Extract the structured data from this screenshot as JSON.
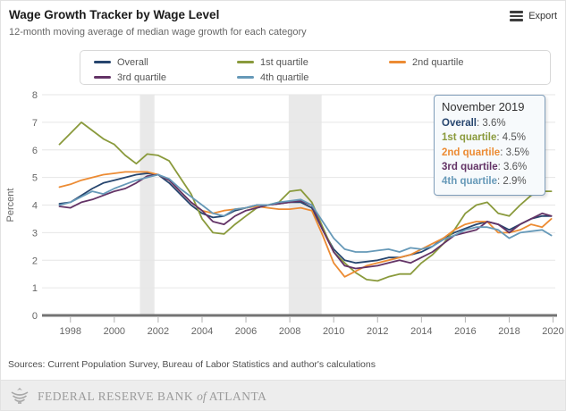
{
  "header": {
    "export_label": "Export"
  },
  "chart_data": {
    "type": "line",
    "title": "Wage Growth Tracker by Wage Level",
    "subtitle": "12-month moving average of median wage growth for each category",
    "xlabel": "",
    "ylabel": "Percent",
    "ylim": [
      0,
      8
    ],
    "yticks": [
      0,
      1,
      2,
      3,
      4,
      5,
      6,
      7,
      8
    ],
    "xlim": [
      1996.95,
      2020.1
    ],
    "xticks": [
      1998,
      2000,
      2002,
      2004,
      2006,
      2008,
      2010,
      2012,
      2014,
      2016,
      2018,
      2020
    ],
    "grid": true,
    "legend_position": "top",
    "band_color": "#e9e9e9",
    "grid_color": "#e6e6e6",
    "axis_color": "#737373",
    "recession_bands": [
      [
        2001.17,
        2001.83
      ],
      [
        2007.95,
        2009.45
      ]
    ],
    "x": [
      1997.5,
      1998,
      1998.5,
      1999,
      1999.5,
      2000,
      2000.5,
      2001,
      2001.5,
      2002,
      2002.5,
      2003,
      2003.5,
      2004,
      2004.5,
      2005,
      2005.5,
      2006,
      2006.5,
      2007,
      2007.5,
      2008,
      2008.5,
      2009,
      2009.5,
      2010,
      2010.5,
      2011,
      2011.5,
      2012,
      2012.5,
      2013,
      2013.5,
      2014,
      2014.5,
      2015,
      2015.5,
      2016,
      2016.5,
      2017,
      2017.5,
      2018,
      2018.5,
      2019,
      2019.5,
      2019.92
    ],
    "series": [
      {
        "name": "Overall",
        "color": "#26456e",
        "values": [
          4.05,
          4.1,
          4.35,
          4.6,
          4.8,
          4.9,
          5.0,
          5.1,
          5.15,
          5.1,
          4.8,
          4.4,
          4.0,
          3.7,
          3.55,
          3.6,
          3.8,
          3.9,
          4.0,
          4.0,
          4.05,
          4.1,
          4.1,
          3.9,
          3.1,
          2.4,
          2.0,
          1.9,
          1.95,
          2.0,
          2.1,
          2.1,
          2.2,
          2.3,
          2.5,
          2.8,
          3.0,
          3.15,
          3.3,
          3.4,
          3.3,
          3.1,
          3.3,
          3.5,
          3.6,
          3.6
        ]
      },
      {
        "name": "1st quartile",
        "color": "#8a9a3c",
        "values": [
          6.2,
          6.6,
          7.0,
          6.7,
          6.4,
          6.2,
          5.8,
          5.5,
          5.85,
          5.8,
          5.6,
          5.0,
          4.4,
          3.5,
          3.0,
          2.95,
          3.3,
          3.6,
          3.9,
          4.0,
          4.1,
          4.5,
          4.55,
          4.1,
          3.2,
          2.3,
          1.9,
          1.55,
          1.3,
          1.25,
          1.4,
          1.5,
          1.5,
          1.9,
          2.2,
          2.6,
          3.1,
          3.7,
          4.0,
          4.1,
          3.7,
          3.6,
          4.0,
          4.35,
          4.5,
          4.5
        ]
      },
      {
        "name": "2nd quartile",
        "color": "#ec8b33",
        "values": [
          4.65,
          4.75,
          4.9,
          5.0,
          5.1,
          5.15,
          5.2,
          5.2,
          5.2,
          5.1,
          4.9,
          4.5,
          4.1,
          3.8,
          3.7,
          3.8,
          3.85,
          3.9,
          3.95,
          3.9,
          3.85,
          3.85,
          3.9,
          3.8,
          2.9,
          1.9,
          1.4,
          1.6,
          1.8,
          1.9,
          2.0,
          2.1,
          2.2,
          2.4,
          2.6,
          2.8,
          3.1,
          3.3,
          3.4,
          3.4,
          3.0,
          3.0,
          3.1,
          3.3,
          3.2,
          3.5
        ]
      },
      {
        "name": "3rd quartile",
        "color": "#633366",
        "values": [
          3.95,
          3.9,
          4.1,
          4.2,
          4.35,
          4.5,
          4.6,
          4.8,
          5.05,
          5.1,
          4.9,
          4.5,
          4.1,
          3.8,
          3.4,
          3.3,
          3.6,
          3.8,
          3.9,
          4.0,
          4.05,
          4.1,
          4.15,
          4.0,
          3.1,
          2.3,
          1.8,
          1.7,
          1.75,
          1.8,
          1.9,
          2.0,
          1.9,
          2.1,
          2.3,
          2.6,
          2.9,
          3.0,
          3.1,
          3.4,
          3.3,
          3.0,
          3.3,
          3.5,
          3.7,
          3.6
        ]
      },
      {
        "name": "4th quartile",
        "color": "#6699b8",
        "values": [
          4.0,
          4.1,
          4.3,
          4.5,
          4.4,
          4.6,
          4.75,
          4.9,
          5.0,
          5.1,
          4.95,
          4.6,
          4.3,
          4.0,
          3.7,
          3.6,
          3.85,
          3.9,
          4.0,
          4.0,
          4.1,
          4.15,
          4.2,
          4.0,
          3.4,
          2.8,
          2.4,
          2.3,
          2.3,
          2.35,
          2.4,
          2.3,
          2.45,
          2.4,
          2.5,
          2.75,
          2.9,
          3.1,
          3.2,
          3.2,
          3.1,
          2.8,
          3.0,
          3.05,
          3.1,
          2.9
        ]
      }
    ]
  },
  "tooltip": {
    "title": "November 2019",
    "separator": ": ",
    "values": [
      "3.6%",
      "4.5%",
      "3.5%",
      "3.6%",
      "2.9%"
    ]
  },
  "footer": {
    "sources": "Sources: Current Population Survey, Bureau of Labor Statistics and author's calculations",
    "logo_text_1": "FEDERAL RESERVE BANK",
    "logo_text_of": "of",
    "logo_text_2": "ATLANTA"
  }
}
